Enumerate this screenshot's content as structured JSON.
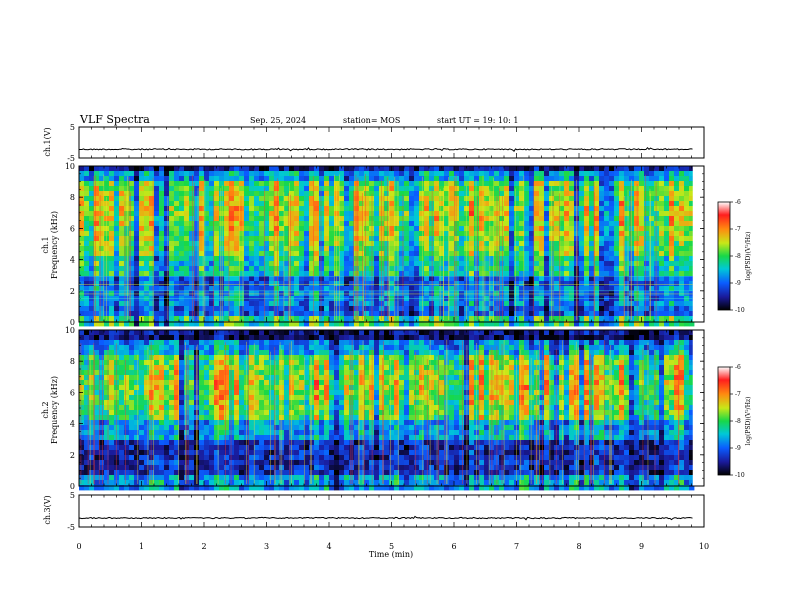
{
  "header": {
    "title": "VLF Spectra",
    "date": "Sep. 25, 2024",
    "station": "station= MOS",
    "start": "start  UT =   19: 10: 1"
  },
  "chart_data": [
    {
      "type": "line",
      "panel": "ch1-waveform",
      "ylabel": "ch.1(V)",
      "ylim": [
        -5,
        5
      ],
      "yticks": [
        "5",
        "-5"
      ],
      "xlim": [
        0,
        10
      ],
      "baseline": -2.2
    },
    {
      "type": "heatmap",
      "panel": "ch1-spectrogram",
      "ylabel": "ch.1\nFrequency (kHz)",
      "ylim": [
        0,
        10
      ],
      "yticks": [
        "0",
        "2",
        "4",
        "6",
        "8",
        "10"
      ],
      "xlim": [
        0,
        10
      ],
      "data_end_min": 9.82,
      "colorbar": {
        "label": "log(PSD)(V²/Hz)",
        "range": [
          -10,
          -6
        ],
        "ticks": [
          "-6",
          "-7",
          "-8",
          "-9",
          "-10"
        ]
      }
    },
    {
      "type": "heatmap",
      "panel": "ch2-spectrogram",
      "ylabel": "ch.2\nFrequency (kHz)",
      "ylim": [
        0,
        10
      ],
      "yticks": [
        "0",
        "2",
        "4",
        "6",
        "8",
        "10"
      ],
      "xlim": [
        0,
        10
      ],
      "data_end_min": 9.82,
      "colorbar": {
        "label": "log(PSD)(V²/Hz)",
        "range": [
          -10,
          -6
        ],
        "ticks": [
          "-6",
          "-7",
          "-8",
          "-9",
          "-10"
        ]
      }
    },
    {
      "type": "line",
      "panel": "ch3-waveform",
      "ylabel": "ch.3(V)",
      "ylim": [
        -5,
        5
      ],
      "yticks": [
        "5",
        "-5"
      ],
      "xlim": [
        0,
        10
      ],
      "baseline": -2.2,
      "xlabel": "Time (min)",
      "xticks": [
        "0",
        "1",
        "2",
        "3",
        "4",
        "5",
        "6",
        "7",
        "8",
        "9",
        "10"
      ]
    }
  ]
}
